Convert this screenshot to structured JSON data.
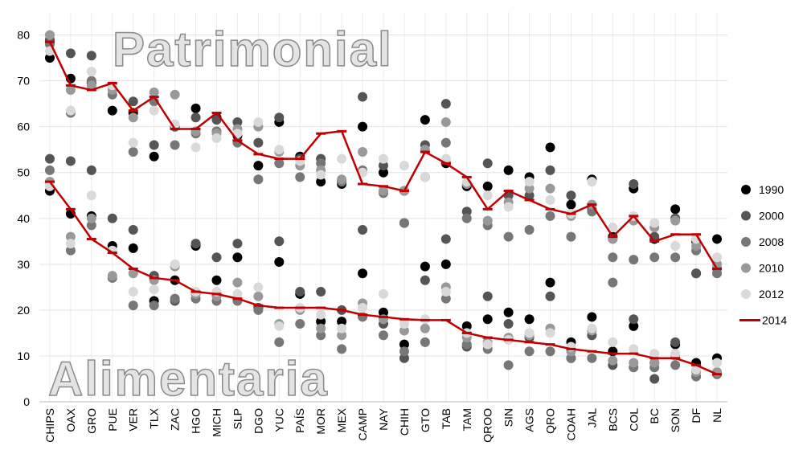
{
  "chart_data": {
    "type": "scatter",
    "groups": [
      "Patrimonial",
      "Alimentaria"
    ],
    "categories": [
      "CHIPS",
      "OAX",
      "GRO",
      "PUE",
      "VER",
      "TLX",
      "ZAC",
      "HGO",
      "MICH",
      "SLP",
      "DGO",
      "YUC",
      "PAÍS",
      "MOR",
      "MEX",
      "CAMP",
      "NAY",
      "CHIH",
      "GTO",
      "TAB",
      "TAM",
      "QROO",
      "SIN",
      "AGS",
      "QRO",
      "COAH",
      "JAL",
      "BCS",
      "COL",
      "BC",
      "SON",
      "DF",
      "NL"
    ],
    "ylim": [
      0,
      85
    ],
    "yticks": [
      0,
      10,
      20,
      30,
      40,
      50,
      60,
      70,
      80
    ],
    "grid": true,
    "legend": "right",
    "series": [
      {
        "name": "1990",
        "color": "#000000",
        "type": "scatter",
        "values": [
          [
            75,
            70.5,
            69.5,
            63.5,
            63,
            53.5,
            60,
            64,
            62,
            58,
            51.5,
            61,
            53.5,
            48,
            47.5,
            60,
            50,
            46,
            61.5,
            52,
            47,
            47,
            50.5,
            49,
            55.5,
            43,
            48.5,
            36,
            46.5,
            35.5,
            42,
            35,
            35.5
          ],
          [
            46,
            41,
            40.5,
            34,
            33.5,
            22,
            26.5,
            34,
            26.5,
            31.5,
            20.5,
            30.5,
            23.5,
            17.5,
            17.5,
            28,
            19.5,
            12.5,
            29.5,
            30,
            16.5,
            18,
            19.5,
            18,
            26,
            13,
            18.5,
            11,
            16.5,
            8.5,
            12.5,
            8.5,
            9.5
          ]
        ]
      },
      {
        "name": "2000",
        "color": "#555555",
        "type": "scatter",
        "values": [
          [
            79,
            76,
            75.5,
            69,
            65.5,
            56,
            60,
            62,
            61.5,
            61,
            56.5,
            62,
            53,
            53,
            48,
            66.5,
            51.5,
            39,
            56,
            65,
            41.5,
            52,
            45,
            45,
            50.5,
            45,
            42,
            35.5,
            47.5,
            36,
            40,
            28,
            29
          ],
          [
            53,
            52.5,
            50.5,
            40,
            37.5,
            27.5,
            22,
            34.5,
            31.5,
            34.5,
            20.5,
            35,
            24,
            24,
            20,
            37.5,
            17,
            9.5,
            26.5,
            35.5,
            12,
            23,
            17,
            14,
            23,
            9.5,
            14.5,
            8,
            18,
            5,
            13,
            28,
            6
          ]
        ]
      },
      {
        "name": "2008",
        "color": "#777777",
        "type": "scatter",
        "values": [
          [
            78,
            63,
            70,
            67,
            54.5,
            65.5,
            56,
            58.5,
            59,
            56.5,
            48.5,
            52,
            49,
            52,
            48,
            50.5,
            45.5,
            39,
            49,
            56.5,
            40,
            38.5,
            36,
            37.5,
            40.5,
            36,
            41.5,
            31.5,
            31,
            31.5,
            31.5,
            33,
            28
          ],
          [
            50.5,
            33,
            38.5,
            27,
            21,
            21,
            22.5,
            22.5,
            22,
            22,
            20,
            13,
            17,
            14.5,
            11.5,
            18.5,
            14.5,
            11,
            13,
            22.5,
            12.5,
            11.5,
            8,
            11,
            11,
            9.5,
            9.5,
            26,
            7.5,
            7.5,
            8,
            5.5,
            6
          ]
        ]
      },
      {
        "name": "2010",
        "color": "#999999",
        "type": "scatter",
        "values": [
          [
            80,
            68,
            69,
            68,
            62,
            67.5,
            67,
            59,
            58.5,
            59.5,
            60,
            54.5,
            51.5,
            50.5,
            48.5,
            54.5,
            46,
            46,
            55,
            61,
            47.5,
            39.5,
            43.5,
            46.5,
            46.5,
            40.5,
            43,
            35.5,
            39.5,
            38,
            39.5,
            34,
            30
          ],
          [
            48,
            36,
            40,
            27.5,
            28,
            26.5,
            29.5,
            23.5,
            23,
            26,
            23,
            17,
            20,
            16,
            14.5,
            21.5,
            18,
            15.5,
            16,
            25,
            14,
            13,
            14,
            14.5,
            16,
            11,
            15.5,
            9,
            8.5,
            8.5,
            10,
            6.5,
            6.5
          ]
        ]
      },
      {
        "name": "2012",
        "color": "#d9d9d9",
        "type": "scatter",
        "values": [
          [
            76.5,
            63.5,
            72,
            69,
            56.5,
            63.5,
            60.5,
            55.5,
            57.5,
            58.5,
            61,
            55,
            52.5,
            49.5,
            53,
            50,
            53,
            51.5,
            49,
            53,
            48,
            45,
            42.5,
            48,
            44,
            41,
            48,
            38,
            40.5,
            39,
            34,
            35.5,
            31.5
          ],
          [
            47,
            34.5,
            45,
            33,
            24,
            24.5,
            30,
            24,
            24,
            23.5,
            25,
            16.5,
            20.5,
            19,
            16,
            20.5,
            23.5,
            17,
            18,
            24,
            15,
            12.5,
            13.5,
            15,
            15,
            12,
            16,
            13,
            11.5,
            10.5,
            10.5,
            7,
            8.5
          ]
        ]
      },
      {
        "name": "2014",
        "color": "#c00000",
        "type": "line",
        "values": [
          [
            78.5,
            69,
            68,
            69.5,
            63.5,
            66.5,
            59.5,
            59.5,
            63,
            57,
            54,
            53,
            53,
            58.5,
            59,
            47.5,
            47,
            46,
            54.5,
            52,
            49,
            42,
            46,
            44,
            42,
            41,
            43,
            36,
            40.5,
            35,
            36.5,
            36.5,
            29
          ],
          [
            48,
            42,
            35.5,
            32.5,
            29,
            27,
            26.5,
            24,
            23.5,
            22.5,
            21,
            20.5,
            20.5,
            20.5,
            20,
            19,
            18.5,
            18,
            17.8,
            17.8,
            15,
            14,
            13.5,
            13,
            12.5,
            11.5,
            11,
            10.5,
            10.5,
            9.5,
            9.5,
            8,
            6
          ]
        ]
      }
    ]
  }
}
